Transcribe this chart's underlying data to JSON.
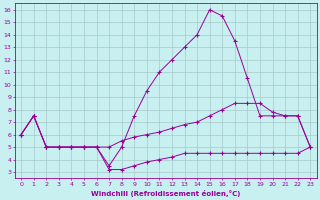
{
  "xlabel": "Windchill (Refroidissement éolien,°C)",
  "bg_color": "#c8f0f0",
  "grid_color": "#a8c8c8",
  "line_color": "#990099",
  "xlim": [
    -0.5,
    23.5
  ],
  "ylim": [
    2.5,
    16.5
  ],
  "x_ticks": [
    0,
    1,
    2,
    3,
    4,
    5,
    6,
    7,
    8,
    9,
    10,
    11,
    12,
    13,
    14,
    15,
    16,
    17,
    18,
    19,
    20,
    21,
    22,
    23
  ],
  "y_ticks": [
    3,
    4,
    5,
    6,
    7,
    8,
    9,
    10,
    11,
    12,
    13,
    14,
    15,
    16
  ],
  "series1_x": [
    0,
    1,
    2,
    3,
    4,
    5,
    6,
    7,
    8,
    9,
    10,
    11,
    12,
    13,
    14,
    15,
    16,
    17,
    18,
    19,
    20,
    21,
    22,
    23
  ],
  "series1_y": [
    6.0,
    7.5,
    5.0,
    5.0,
    5.0,
    5.0,
    5.0,
    3.2,
    3.2,
    3.5,
    3.8,
    4.0,
    4.2,
    4.5,
    4.5,
    4.5,
    4.5,
    4.5,
    4.5,
    4.5,
    4.5,
    4.5,
    4.5,
    5.0
  ],
  "series2_x": [
    0,
    1,
    2,
    3,
    4,
    5,
    6,
    7,
    8,
    9,
    10,
    11,
    12,
    13,
    14,
    15,
    16,
    17,
    18,
    19,
    20,
    21,
    22,
    23
  ],
  "series2_y": [
    6.0,
    7.5,
    5.0,
    5.0,
    5.0,
    5.0,
    5.0,
    3.5,
    5.0,
    7.5,
    9.5,
    11.0,
    12.0,
    13.0,
    14.0,
    16.0,
    15.5,
    13.5,
    10.5,
    7.5,
    7.5,
    7.5,
    7.5,
    5.0
  ],
  "series3_x": [
    0,
    1,
    2,
    3,
    4,
    5,
    6,
    7,
    8,
    9,
    10,
    11,
    12,
    13,
    14,
    15,
    16,
    17,
    18,
    19,
    20,
    21,
    22,
    23
  ],
  "series3_y": [
    6.0,
    7.5,
    5.0,
    5.0,
    5.0,
    5.0,
    5.0,
    5.0,
    5.5,
    5.8,
    6.0,
    6.2,
    6.5,
    6.8,
    7.0,
    7.5,
    8.0,
    8.5,
    8.5,
    8.5,
    7.8,
    7.5,
    7.5,
    5.0
  ]
}
